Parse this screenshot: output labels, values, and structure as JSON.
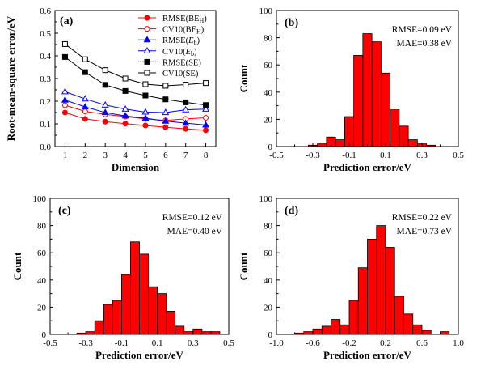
{
  "chart_data": [
    {
      "panel": "(a)",
      "type": "line",
      "xlabel": "Dimension",
      "ylabel": "Root-mean-square error/eV",
      "x": [
        1,
        2,
        3,
        4,
        5,
        6,
        7,
        8
      ],
      "xlim": [
        0.5,
        8.5
      ],
      "ylim": [
        0,
        0.6
      ],
      "xticks": [
        "1",
        "2",
        "3",
        "4",
        "5",
        "6",
        "7",
        "8"
      ],
      "yticks": [
        "0.0",
        "0.1",
        "0.2",
        "0.3",
        "0.4",
        "0.5",
        "0.6"
      ],
      "legend_position": "top-right",
      "series": [
        {
          "name": "RMSE(BE",
          "name_sub": "H",
          "name_end": ")",
          "color": "#ff0000",
          "marker": "circle",
          "filled": true,
          "values": [
            0.15,
            0.122,
            0.11,
            0.101,
            0.093,
            0.085,
            0.078,
            0.072
          ]
        },
        {
          "name": "CV10(BE",
          "name_sub": "H",
          "name_end": ")",
          "color": "#ff0000",
          "marker": "circle",
          "filled": false,
          "values": [
            0.182,
            0.155,
            0.142,
            0.132,
            0.122,
            0.115,
            0.122,
            0.127
          ]
        },
        {
          "name": "RMSE(",
          "name_ital": "E",
          "name_sub": "b",
          "name_end": ")",
          "color": "#0000ff",
          "marker": "triangle",
          "filled": true,
          "values": [
            0.205,
            0.175,
            0.15,
            0.135,
            0.125,
            0.112,
            0.103,
            0.095
          ]
        },
        {
          "name": "CV10(",
          "name_ital": "E",
          "name_sub": "b",
          "name_end": ")",
          "color": "#0000ff",
          "marker": "triangle",
          "filled": false,
          "values": [
            0.242,
            0.21,
            0.183,
            0.165,
            0.152,
            0.15,
            0.162,
            0.165
          ]
        },
        {
          "name": "RMSE(SE)",
          "color": "#000000",
          "marker": "square",
          "filled": true,
          "values": [
            0.395,
            0.328,
            0.272,
            0.245,
            0.225,
            0.208,
            0.195,
            0.183
          ]
        },
        {
          "name": "CV10(SE)",
          "color": "#000000",
          "marker": "square",
          "filled": false,
          "values": [
            0.452,
            0.385,
            0.337,
            0.3,
            0.275,
            0.268,
            0.273,
            0.28
          ]
        }
      ]
    },
    {
      "panel": "(b)",
      "type": "bar",
      "xlabel": "Prediction error/eV",
      "ylabel": "Count",
      "annotations": [
        "RMSE=0.09 eV",
        "MAE=0.38 eV"
      ],
      "xlim": [
        -0.5,
        0.5
      ],
      "ylim": [
        0,
        100
      ],
      "xticks": [
        -0.5,
        -0.3,
        -0.1,
        0.1,
        0.3,
        0.5
      ],
      "xtick_labels": [
        "-0.5",
        "-0.3",
        "-0.1",
        "0.1",
        "0.3",
        "0.5"
      ],
      "yticks": [
        "0",
        "20",
        "40",
        "60",
        "80",
        "100"
      ],
      "bin_start": -0.375,
      "bin_width": 0.05,
      "values": [
        0,
        1,
        2,
        7,
        5,
        22,
        67,
        83,
        77,
        54,
        27,
        15,
        5,
        2,
        1
      ]
    },
    {
      "panel": "(c)",
      "type": "bar",
      "xlabel": "Prediction error/eV",
      "ylabel": "Count",
      "annotations": [
        "RMSE=0.12 eV",
        "MAE=0.40 eV"
      ],
      "xlim": [
        -0.5,
        0.5
      ],
      "ylim": [
        0,
        100
      ],
      "xticks": [
        -0.5,
        -0.3,
        -0.1,
        0.1,
        0.3,
        0.5
      ],
      "xtick_labels": [
        "-0.5",
        "-0.3",
        "-0.1",
        "0.1",
        "0.3",
        "0.5"
      ],
      "yticks": [
        "0",
        "20",
        "40",
        "60",
        "80",
        "100"
      ],
      "bin_start": -0.35,
      "bin_width": 0.05,
      "values": [
        1,
        2,
        10,
        22,
        25,
        44,
        68,
        59,
        35,
        30,
        17,
        6,
        2,
        4,
        2,
        2
      ]
    },
    {
      "panel": "(d)",
      "type": "bar",
      "xlabel": "Prediction error/eV",
      "ylabel": "Count",
      "annotations": [
        "RMSE=0.22 eV",
        "MAE=0.73 eV"
      ],
      "xlim": [
        -1.0,
        1.0
      ],
      "ylim": [
        0,
        100
      ],
      "xticks": [
        -1.0,
        -0.6,
        -0.2,
        0.2,
        0.6,
        1.0
      ],
      "xtick_labels": [
        "-1.0",
        "-0.6",
        "-0.2",
        "0.2",
        "0.6",
        "1.0"
      ],
      "yticks": [
        "0",
        "20",
        "40",
        "60",
        "80",
        "100"
      ],
      "bin_start": -0.8,
      "bin_width": 0.1,
      "values": [
        1,
        2,
        4,
        6,
        11,
        7,
        25,
        49,
        70,
        80,
        64,
        28,
        15,
        7,
        3,
        0,
        2
      ]
    }
  ]
}
